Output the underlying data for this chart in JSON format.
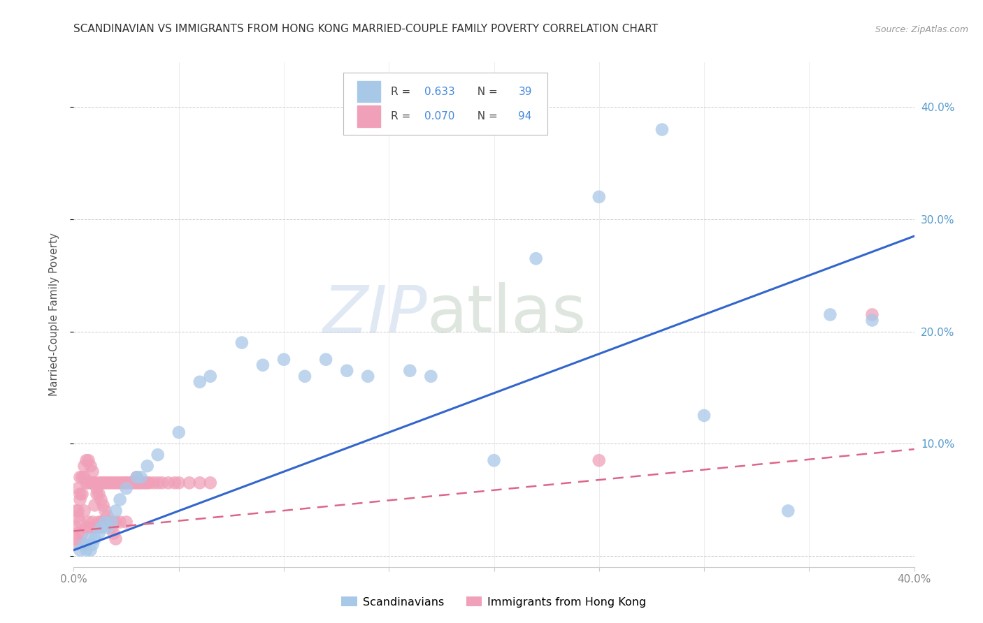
{
  "title": "SCANDINAVIAN VS IMMIGRANTS FROM HONG KONG MARRIED-COUPLE FAMILY POVERTY CORRELATION CHART",
  "source": "Source: ZipAtlas.com",
  "ylabel": "Married-Couple Family Poverty",
  "watermark_zip": "ZIP",
  "watermark_atlas": "atlas",
  "xlim": [
    0.0,
    0.4
  ],
  "ylim": [
    -0.01,
    0.44
  ],
  "scand_color": "#a8c8e8",
  "hk_color": "#f0a0b8",
  "scand_line_color": "#3366cc",
  "hk_line_color": "#dd6688",
  "grid_color": "#cccccc",
  "bg_color": "#ffffff",
  "title_color": "#333333",
  "source_color": "#999999",
  "tick_color": "#888888",
  "right_tick_color": "#5599cc",
  "scand_x": [
    0.003,
    0.005,
    0.006,
    0.007,
    0.008,
    0.009,
    0.01,
    0.012,
    0.013,
    0.015,
    0.016,
    0.018,
    0.02,
    0.022,
    0.025,
    0.03,
    0.032,
    0.035,
    0.04,
    0.05,
    0.06,
    0.065,
    0.08,
    0.09,
    0.1,
    0.11,
    0.12,
    0.13,
    0.14,
    0.16,
    0.17,
    0.2,
    0.22,
    0.25,
    0.28,
    0.3,
    0.34,
    0.36,
    0.38
  ],
  "scand_y": [
    0.005,
    0.01,
    0.005,
    0.015,
    0.005,
    0.01,
    0.015,
    0.02,
    0.025,
    0.03,
    0.025,
    0.03,
    0.04,
    0.05,
    0.06,
    0.07,
    0.07,
    0.08,
    0.09,
    0.11,
    0.155,
    0.16,
    0.19,
    0.17,
    0.175,
    0.16,
    0.175,
    0.165,
    0.16,
    0.165,
    0.16,
    0.085,
    0.265,
    0.32,
    0.38,
    0.125,
    0.04,
    0.215,
    0.21
  ],
  "hk_x": [
    0.001,
    0.001,
    0.001,
    0.002,
    0.002,
    0.002,
    0.003,
    0.003,
    0.003,
    0.004,
    0.004,
    0.005,
    0.005,
    0.005,
    0.006,
    0.006,
    0.007,
    0.007,
    0.008,
    0.008,
    0.009,
    0.009,
    0.01,
    0.01,
    0.01,
    0.011,
    0.011,
    0.012,
    0.012,
    0.013,
    0.013,
    0.014,
    0.014,
    0.015,
    0.015,
    0.016,
    0.016,
    0.017,
    0.017,
    0.018,
    0.018,
    0.019,
    0.019,
    0.02,
    0.02,
    0.021,
    0.022,
    0.022,
    0.023,
    0.024,
    0.025,
    0.025,
    0.026,
    0.027,
    0.028,
    0.029,
    0.03,
    0.031,
    0.032,
    0.033,
    0.034,
    0.035,
    0.036,
    0.038,
    0.04,
    0.042,
    0.045,
    0.048,
    0.05,
    0.055,
    0.06,
    0.065,
    0.001,
    0.002,
    0.003,
    0.004,
    0.005,
    0.006,
    0.007,
    0.008,
    0.009,
    0.01,
    0.011,
    0.012,
    0.013,
    0.014,
    0.015,
    0.016,
    0.017,
    0.018,
    0.019,
    0.02,
    0.025,
    0.03,
    0.25,
    0.38
  ],
  "hk_y": [
    0.01,
    0.025,
    0.04,
    0.02,
    0.04,
    0.06,
    0.03,
    0.05,
    0.07,
    0.02,
    0.055,
    0.01,
    0.04,
    0.07,
    0.025,
    0.065,
    0.03,
    0.065,
    0.025,
    0.065,
    0.03,
    0.065,
    0.025,
    0.045,
    0.065,
    0.025,
    0.055,
    0.03,
    0.065,
    0.03,
    0.065,
    0.03,
    0.065,
    0.03,
    0.065,
    0.03,
    0.065,
    0.03,
    0.065,
    0.03,
    0.065,
    0.03,
    0.065,
    0.03,
    0.065,
    0.065,
    0.03,
    0.065,
    0.065,
    0.065,
    0.03,
    0.065,
    0.065,
    0.065,
    0.065,
    0.065,
    0.065,
    0.065,
    0.065,
    0.065,
    0.065,
    0.065,
    0.065,
    0.065,
    0.065,
    0.065,
    0.065,
    0.065,
    0.065,
    0.065,
    0.065,
    0.065,
    0.015,
    0.035,
    0.055,
    0.07,
    0.08,
    0.085,
    0.085,
    0.08,
    0.075,
    0.065,
    0.06,
    0.055,
    0.05,
    0.045,
    0.04,
    0.035,
    0.03,
    0.025,
    0.02,
    0.015,
    0.065,
    0.07,
    0.085,
    0.215
  ],
  "scand_line_x": [
    0.0,
    0.4
  ],
  "scand_line_y": [
    0.005,
    0.285
  ],
  "hk_line_x": [
    0.0,
    0.4
  ],
  "hk_line_y": [
    0.022,
    0.095
  ]
}
